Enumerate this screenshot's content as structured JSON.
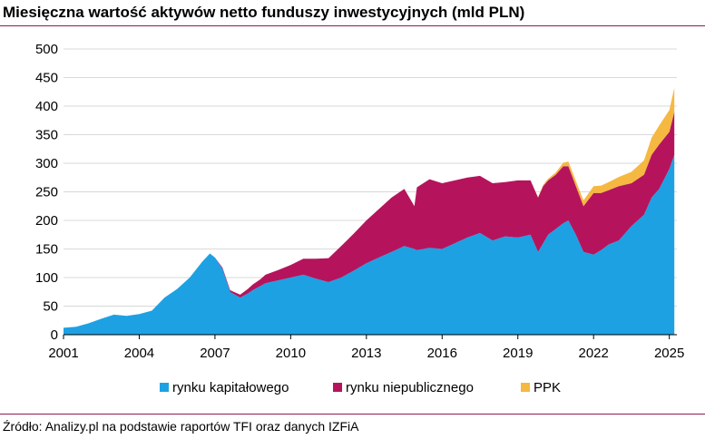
{
  "title": "Miesięczna wartość aktywów netto funduszy inwestycyjnych (mld PLN)",
  "source": "Źródło: Analizy.pl na podstawie raportów TFI oraz danych IZFiA",
  "chart_data": {
    "type": "area",
    "stacked": true,
    "title": "Miesięczna wartość aktywów netto funduszy inwestycyjnych (mld PLN)",
    "xlabel": "",
    "ylabel": "",
    "xlim": [
      2001,
      2025.3
    ],
    "ylim": [
      0,
      500
    ],
    "y_ticks": [
      "0",
      "50",
      "100",
      "150",
      "200",
      "250",
      "300",
      "350",
      "400",
      "450",
      "500"
    ],
    "x_ticks": [
      "2001",
      "2004",
      "2007",
      "2010",
      "2013",
      "2016",
      "2019",
      "2022",
      "2025"
    ],
    "grid": "horizontal",
    "legend": "bottom",
    "x": [
      2001.0,
      2001.5,
      2002.0,
      2002.5,
      2003.0,
      2003.5,
      2004.0,
      2004.5,
      2005.0,
      2005.5,
      2006.0,
      2006.5,
      2006.8,
      2007.0,
      2007.3,
      2007.6,
      2008.0,
      2008.3,
      2008.5,
      2008.8,
      2009.0,
      2009.5,
      2010.0,
      2010.5,
      2011.0,
      2011.5,
      2012.0,
      2012.5,
      2013.0,
      2013.5,
      2014.0,
      2014.5,
      2014.9,
      2015.0,
      2015.5,
      2016.0,
      2016.5,
      2017.0,
      2017.5,
      2018.0,
      2018.5,
      2019.0,
      2019.5,
      2019.8,
      2020.0,
      2020.2,
      2020.5,
      2020.8,
      2021.0,
      2021.3,
      2021.6,
      2022.0,
      2022.3,
      2022.6,
      2023.0,
      2023.5,
      2024.0,
      2024.3,
      2024.6,
      2025.0,
      2025.2
    ],
    "series": [
      {
        "name": "rynku kapitałowego",
        "color": "#1da1e3",
        "values": [
          12,
          14,
          20,
          28,
          35,
          33,
          36,
          42,
          65,
          80,
          100,
          128,
          142,
          135,
          115,
          75,
          65,
          72,
          78,
          85,
          90,
          95,
          100,
          105,
          98,
          92,
          100,
          112,
          125,
          135,
          145,
          155,
          150,
          148,
          152,
          150,
          160,
          170,
          178,
          165,
          172,
          170,
          175,
          145,
          160,
          175,
          185,
          195,
          200,
          175,
          145,
          140,
          148,
          158,
          165,
          190,
          210,
          240,
          255,
          290,
          315
        ]
      },
      {
        "name": "rynku niepublicznego",
        "color": "#b5145d",
        "values": [
          0,
          0,
          0,
          0,
          0,
          0,
          0,
          0,
          0,
          0,
          0,
          0,
          0,
          0,
          2,
          3,
          5,
          8,
          10,
          12,
          15,
          18,
          22,
          28,
          35,
          42,
          55,
          65,
          75,
          85,
          95,
          100,
          75,
          110,
          120,
          115,
          110,
          105,
          100,
          100,
          95,
          100,
          95,
          95,
          100,
          95,
          95,
          100,
          95,
          85,
          80,
          108,
          100,
          95,
          95,
          75,
          70,
          75,
          78,
          65,
          75
        ]
      },
      {
        "name": "PPK",
        "color": "#f5b841",
        "values": [
          0,
          0,
          0,
          0,
          0,
          0,
          0,
          0,
          0,
          0,
          0,
          0,
          0,
          0,
          0,
          0,
          0,
          0,
          0,
          0,
          0,
          0,
          0,
          0,
          0,
          0,
          0,
          0,
          0,
          0,
          0,
          0,
          0,
          0,
          0,
          0,
          0,
          0,
          0,
          0,
          0,
          0,
          0,
          1,
          2,
          3,
          4,
          6,
          8,
          9,
          10,
          12,
          13,
          14,
          16,
          20,
          25,
          30,
          33,
          38,
          42
        ]
      }
    ]
  }
}
